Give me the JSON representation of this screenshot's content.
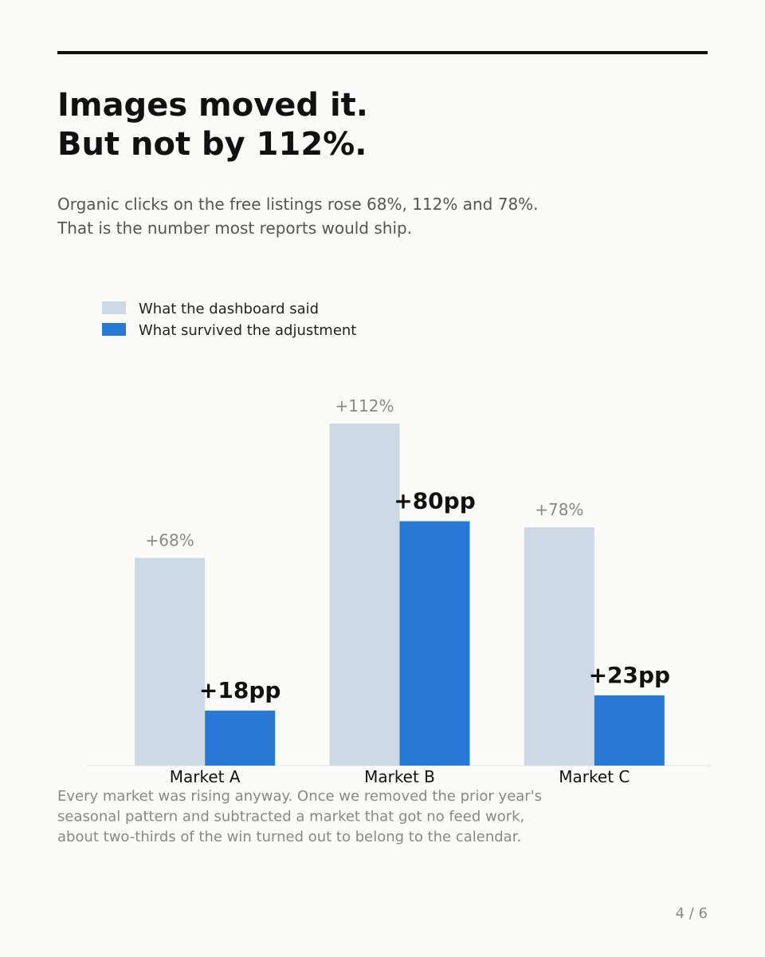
{
  "chart_data": {
    "type": "bar",
    "title": [
      "Images moved it.",
      "But not by 112%."
    ],
    "subtitle": [
      "Organic clicks on the free listings rose 68%, 112% and 78%.",
      "That is the number most reports would ship."
    ],
    "categories": [
      "Market A",
      "Market B",
      "Market C"
    ],
    "series": [
      {
        "name": "What the dashboard said",
        "color": "#cdd9e5",
        "values": [
          68,
          112,
          78
        ],
        "value_labels": [
          "+68%",
          "+112%",
          "+78%"
        ]
      },
      {
        "name": "What survived the adjustment",
        "color": "#2878d6",
        "values": [
          18,
          80,
          23
        ],
        "value_labels": [
          "+18pp",
          "+80pp",
          "+23pp"
        ]
      }
    ],
    "ylim": [
      0,
      112
    ],
    "legend": "top-left",
    "footnote": [
      "Every market was rising anyway. Once we removed the prior year's",
      "seasonal pattern and subtracted a market that got no feed work,",
      "about two-thirds of the win turned out to belong to the calendar."
    ]
  },
  "page_number": "4 / 6"
}
